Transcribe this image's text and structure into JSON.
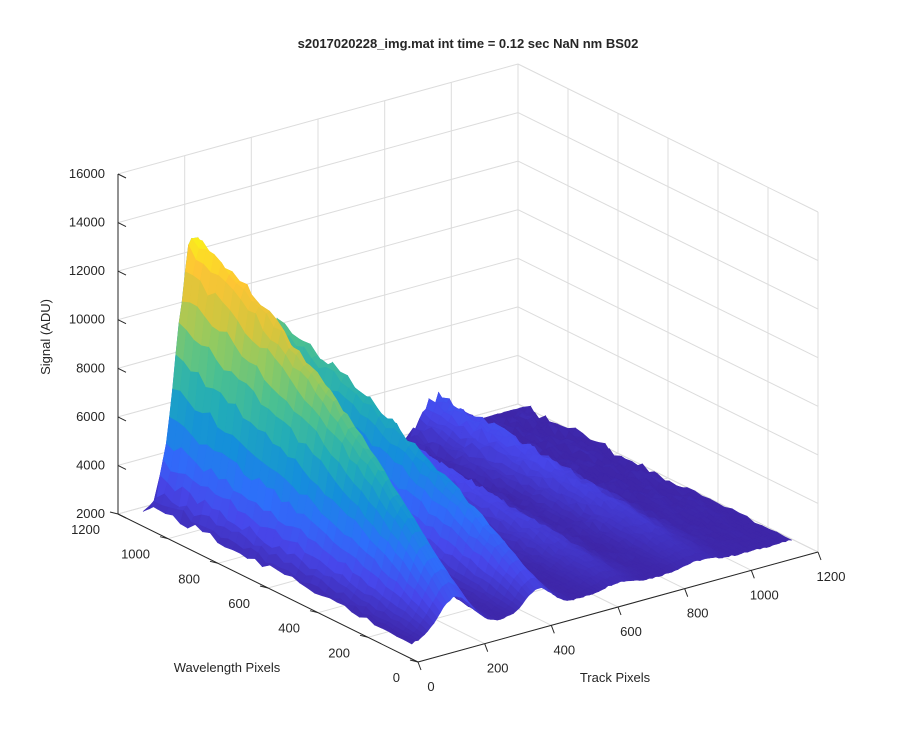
{
  "chart_data": {
    "type": "surface",
    "title": "s2017020228_img.mat int time = 0.12 sec  NaN nm BS02",
    "xlabel": "Track Pixels",
    "ylabel": "Wavelength Pixels",
    "zlabel": "Signal (ADU)",
    "xlim": [
      0,
      1200
    ],
    "ylim": [
      0,
      1200
    ],
    "zlim": [
      2000,
      16000
    ],
    "x_ticks": [
      0,
      200,
      400,
      600,
      800,
      1000,
      1200
    ],
    "y_ticks": [
      0,
      200,
      400,
      600,
      800,
      1000,
      1200
    ],
    "z_ticks": [
      2000,
      4000,
      6000,
      8000,
      10000,
      12000,
      14000,
      16000
    ],
    "grid": true,
    "colormap": "parula",
    "colors": {
      "low": "#3e26a8",
      "mid": "#21bfab",
      "high": "#f9e81b"
    },
    "baseline_signal": 2600,
    "ridges": [
      {
        "track_center": 130,
        "peak_signal": 13800
      },
      {
        "track_center": 380,
        "peak_signal": 9200
      },
      {
        "track_center": 620,
        "peak_signal": 4300
      },
      {
        "track_center": 860,
        "peak_signal": 4200
      }
    ]
  }
}
